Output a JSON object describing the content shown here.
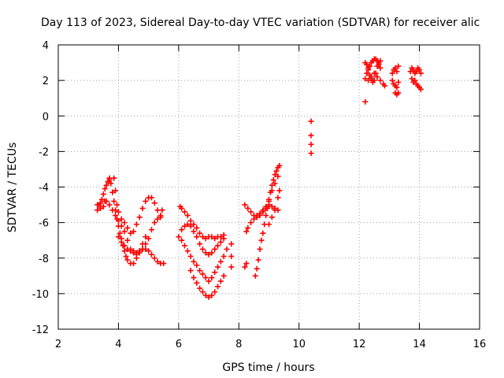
{
  "chart_data": {
    "type": "scatter",
    "title": "Day 113 of 2023, Sidereal Day-to-day VTEC variation (SDTVAR) for receiver alic",
    "xlabel": "GPS time / hours",
    "ylabel": "SDTVAR / TECUs",
    "xlim": [
      2,
      16
    ],
    "ylim": [
      -12,
      4
    ],
    "x_ticks": [
      "2",
      "4",
      "6",
      "8",
      "10",
      "12",
      "14",
      "16"
    ],
    "y_ticks": [
      "4",
      "2",
      "0",
      "-2",
      "-4",
      "-6",
      "-8",
      "-10",
      "-12"
    ],
    "grid": true,
    "marker": "+",
    "colors": {
      "series": "#ff0000",
      "grid": "#a0a0a0",
      "axes": "#000000"
    },
    "series": [
      {
        "points": [
          [
            3.3,
            -5.3
          ],
          [
            3.35,
            -5.0
          ],
          [
            3.4,
            -4.9
          ],
          [
            3.45,
            -4.7
          ],
          [
            3.5,
            -4.4
          ],
          [
            3.55,
            -4.1
          ],
          [
            3.6,
            -3.9
          ],
          [
            3.65,
            -3.7
          ],
          [
            3.7,
            -3.5
          ],
          [
            3.3,
            -5.0
          ],
          [
            3.4,
            -5.2
          ],
          [
            3.5,
            -5.1
          ],
          [
            3.55,
            -4.8
          ],
          [
            3.6,
            -4.8
          ],
          [
            3.7,
            -5.0
          ],
          [
            3.8,
            -5.3
          ],
          [
            3.9,
            -5.6
          ],
          [
            4.0,
            -5.9
          ],
          [
            4.1,
            -6.2
          ],
          [
            4.2,
            -6.5
          ],
          [
            4.3,
            -7.0
          ],
          [
            4.4,
            -7.5
          ],
          [
            4.5,
            -7.7
          ],
          [
            4.6,
            -7.8
          ],
          [
            4.7,
            -7.7
          ],
          [
            4.8,
            -7.5
          ],
          [
            4.9,
            -7.2
          ],
          [
            5.0,
            -6.9
          ],
          [
            5.1,
            -6.4
          ],
          [
            5.2,
            -6.0
          ],
          [
            5.3,
            -5.8
          ],
          [
            5.4,
            -5.6
          ],
          [
            5.45,
            -5.3
          ],
          [
            3.7,
            -3.6
          ],
          [
            3.75,
            -3.8
          ],
          [
            3.8,
            -4.3
          ],
          [
            3.85,
            -4.8
          ],
          [
            3.9,
            -5.3
          ],
          [
            3.95,
            -5.8
          ],
          [
            4.0,
            -6.2
          ],
          [
            4.05,
            -6.6
          ],
          [
            4.1,
            -6.9
          ],
          [
            4.15,
            -7.3
          ],
          [
            4.2,
            -7.6
          ],
          [
            4.25,
            -7.9
          ],
          [
            4.3,
            -8.1
          ],
          [
            4.4,
            -8.3
          ],
          [
            4.5,
            -8.3
          ],
          [
            4.6,
            -8.0
          ],
          [
            4.7,
            -7.6
          ],
          [
            4.8,
            -7.2
          ],
          [
            4.9,
            -6.8
          ],
          [
            3.85,
            -3.5
          ],
          [
            3.9,
            -4.2
          ],
          [
            3.95,
            -5.0
          ],
          [
            4.0,
            -5.4
          ],
          [
            4.1,
            -5.8
          ],
          [
            4.2,
            -6.0
          ],
          [
            4.3,
            -6.3
          ],
          [
            4.4,
            -6.6
          ],
          [
            4.5,
            -6.5
          ],
          [
            4.6,
            -6.1
          ],
          [
            4.7,
            -5.7
          ],
          [
            4.8,
            -5.2
          ],
          [
            4.9,
            -4.8
          ],
          [
            5.0,
            -4.6
          ],
          [
            5.1,
            -4.6
          ],
          [
            5.2,
            -4.9
          ],
          [
            5.3,
            -5.3
          ],
          [
            5.4,
            -5.7
          ],
          [
            4.0,
            -6.8
          ],
          [
            4.1,
            -7.1
          ],
          [
            4.2,
            -7.3
          ],
          [
            4.3,
            -7.5
          ],
          [
            4.4,
            -7.6
          ],
          [
            4.5,
            -7.6
          ],
          [
            4.6,
            -7.7
          ],
          [
            4.7,
            -7.6
          ],
          [
            4.8,
            -7.5
          ],
          [
            4.9,
            -7.5
          ],
          [
            5.0,
            -7.6
          ],
          [
            5.1,
            -7.8
          ],
          [
            5.2,
            -8.0
          ],
          [
            5.3,
            -8.2
          ],
          [
            5.4,
            -8.3
          ],
          [
            5.5,
            -8.3
          ],
          [
            6.05,
            -5.1
          ],
          [
            6.1,
            -5.2
          ],
          [
            6.2,
            -5.4
          ],
          [
            6.3,
            -5.6
          ],
          [
            6.4,
            -5.9
          ],
          [
            6.5,
            -6.1
          ],
          [
            6.6,
            -6.3
          ],
          [
            6.7,
            -6.6
          ],
          [
            6.8,
            -6.8
          ],
          [
            6.9,
            -6.9
          ],
          [
            7.0,
            -6.8
          ],
          [
            7.1,
            -6.8
          ],
          [
            7.2,
            -6.9
          ],
          [
            7.3,
            -6.8
          ],
          [
            7.4,
            -6.8
          ],
          [
            7.5,
            -6.7
          ],
          [
            6.0,
            -6.8
          ],
          [
            6.1,
            -6.4
          ],
          [
            6.2,
            -6.2
          ],
          [
            6.3,
            -6.1
          ],
          [
            6.4,
            -6.2
          ],
          [
            6.5,
            -6.5
          ],
          [
            6.6,
            -6.8
          ],
          [
            6.7,
            -7.2
          ],
          [
            6.8,
            -7.5
          ],
          [
            6.9,
            -7.7
          ],
          [
            7.0,
            -7.8
          ],
          [
            7.1,
            -7.7
          ],
          [
            7.2,
            -7.5
          ],
          [
            7.3,
            -7.3
          ],
          [
            7.4,
            -7.1
          ],
          [
            7.5,
            -6.9
          ],
          [
            6.1,
            -7.0
          ],
          [
            6.2,
            -7.3
          ],
          [
            6.3,
            -7.6
          ],
          [
            6.4,
            -7.9
          ],
          [
            6.5,
            -8.2
          ],
          [
            6.6,
            -8.4
          ],
          [
            6.7,
            -8.7
          ],
          [
            6.8,
            -8.9
          ],
          [
            6.9,
            -9.1
          ],
          [
            7.0,
            -9.3
          ],
          [
            7.1,
            -9.1
          ],
          [
            7.2,
            -8.8
          ],
          [
            7.3,
            -8.5
          ],
          [
            7.4,
            -8.2
          ],
          [
            7.5,
            -7.9
          ],
          [
            7.6,
            -7.5
          ],
          [
            6.4,
            -8.7
          ],
          [
            6.5,
            -9.1
          ],
          [
            6.6,
            -9.4
          ],
          [
            6.7,
            -9.7
          ],
          [
            6.8,
            -9.9
          ],
          [
            6.9,
            -10.1
          ],
          [
            7.0,
            -10.2
          ],
          [
            7.1,
            -10.1
          ],
          [
            7.2,
            -9.9
          ],
          [
            7.3,
            -9.6
          ],
          [
            7.4,
            -9.3
          ],
          [
            7.5,
            -9.0
          ],
          [
            7.75,
            -7.2
          ],
          [
            7.75,
            -7.9
          ],
          [
            7.75,
            -8.5
          ],
          [
            8.2,
            -8.5
          ],
          [
            8.25,
            -8.3
          ],
          [
            8.25,
            -6.5
          ],
          [
            8.3,
            -6.3
          ],
          [
            8.4,
            -6.0
          ],
          [
            8.5,
            -5.8
          ],
          [
            8.6,
            -5.6
          ],
          [
            8.7,
            -5.5
          ],
          [
            8.8,
            -5.3
          ],
          [
            8.9,
            -5.2
          ],
          [
            9.0,
            -5.0
          ],
          [
            9.1,
            -5.1
          ],
          [
            9.2,
            -5.3
          ],
          [
            9.3,
            -5.3
          ],
          [
            8.2,
            -5.0
          ],
          [
            8.3,
            -5.2
          ],
          [
            8.4,
            -5.4
          ],
          [
            8.5,
            -5.6
          ],
          [
            8.6,
            -5.7
          ],
          [
            8.7,
            -5.6
          ],
          [
            8.8,
            -5.4
          ],
          [
            8.9,
            -5.1
          ],
          [
            9.0,
            -4.7
          ],
          [
            9.1,
            -4.2
          ],
          [
            9.2,
            -3.8
          ],
          [
            9.3,
            -3.4
          ],
          [
            8.55,
            -9.0
          ],
          [
            8.6,
            -8.6
          ],
          [
            8.65,
            -8.1
          ],
          [
            8.7,
            -7.5
          ],
          [
            8.75,
            -7.0
          ],
          [
            8.8,
            -6.6
          ],
          [
            8.85,
            -6.1
          ],
          [
            8.9,
            -5.6
          ],
          [
            8.95,
            -5.2
          ],
          [
            9.0,
            -4.8
          ],
          [
            9.05,
            -4.3
          ],
          [
            9.1,
            -3.9
          ],
          [
            9.15,
            -3.6
          ],
          [
            9.2,
            -3.3
          ],
          [
            9.25,
            -3.1
          ],
          [
            9.3,
            -2.9
          ],
          [
            9.35,
            -2.8
          ],
          [
            9.0,
            -6.1
          ],
          [
            9.1,
            -5.7
          ],
          [
            9.2,
            -5.2
          ],
          [
            9.3,
            -4.6
          ],
          [
            9.35,
            -4.2
          ],
          [
            10.4,
            -0.3
          ],
          [
            10.4,
            -1.1
          ],
          [
            10.4,
            -1.6
          ],
          [
            10.4,
            -2.1
          ],
          [
            12.2,
            0.8
          ],
          [
            12.2,
            2.1
          ],
          [
            12.25,
            2.4
          ],
          [
            12.3,
            2.6
          ],
          [
            12.35,
            2.3
          ],
          [
            12.4,
            2.1
          ],
          [
            12.45,
            1.9
          ],
          [
            12.5,
            2.0
          ],
          [
            12.55,
            2.4
          ],
          [
            12.6,
            2.8
          ],
          [
            12.65,
            3.0
          ],
          [
            12.7,
            3.1
          ],
          [
            12.2,
            3.0
          ],
          [
            12.25,
            2.9
          ],
          [
            12.3,
            2.7
          ],
          [
            12.35,
            2.8
          ],
          [
            12.4,
            3.0
          ],
          [
            12.45,
            3.1
          ],
          [
            12.5,
            3.2
          ],
          [
            12.55,
            3.2
          ],
          [
            12.6,
            3.1
          ],
          [
            12.65,
            2.9
          ],
          [
            12.7,
            2.7
          ],
          [
            12.3,
            2.0
          ],
          [
            12.4,
            2.2
          ],
          [
            12.5,
            2.4
          ],
          [
            12.6,
            2.2
          ],
          [
            12.7,
            2.0
          ],
          [
            12.8,
            1.8
          ],
          [
            12.85,
            1.7
          ],
          [
            13.1,
            2.4
          ],
          [
            13.15,
            2.6
          ],
          [
            13.2,
            2.7
          ],
          [
            13.25,
            2.5
          ],
          [
            13.3,
            2.8
          ],
          [
            13.1,
            2.0
          ],
          [
            13.15,
            1.8
          ],
          [
            13.2,
            1.7
          ],
          [
            13.25,
            1.6
          ],
          [
            13.2,
            1.3
          ],
          [
            13.25,
            1.2
          ],
          [
            13.3,
            1.3
          ],
          [
            13.3,
            1.9
          ],
          [
            13.7,
            2.5
          ],
          [
            13.75,
            2.7
          ],
          [
            13.8,
            2.6
          ],
          [
            13.85,
            2.4
          ],
          [
            13.9,
            2.5
          ],
          [
            13.95,
            2.7
          ],
          [
            14.0,
            2.6
          ],
          [
            14.05,
            2.4
          ],
          [
            13.75,
            2.1
          ],
          [
            13.8,
            1.9
          ],
          [
            13.85,
            2.0
          ],
          [
            13.9,
            1.8
          ],
          [
            13.95,
            1.7
          ],
          [
            14.0,
            1.6
          ],
          [
            14.05,
            1.5
          ]
        ]
      }
    ]
  }
}
